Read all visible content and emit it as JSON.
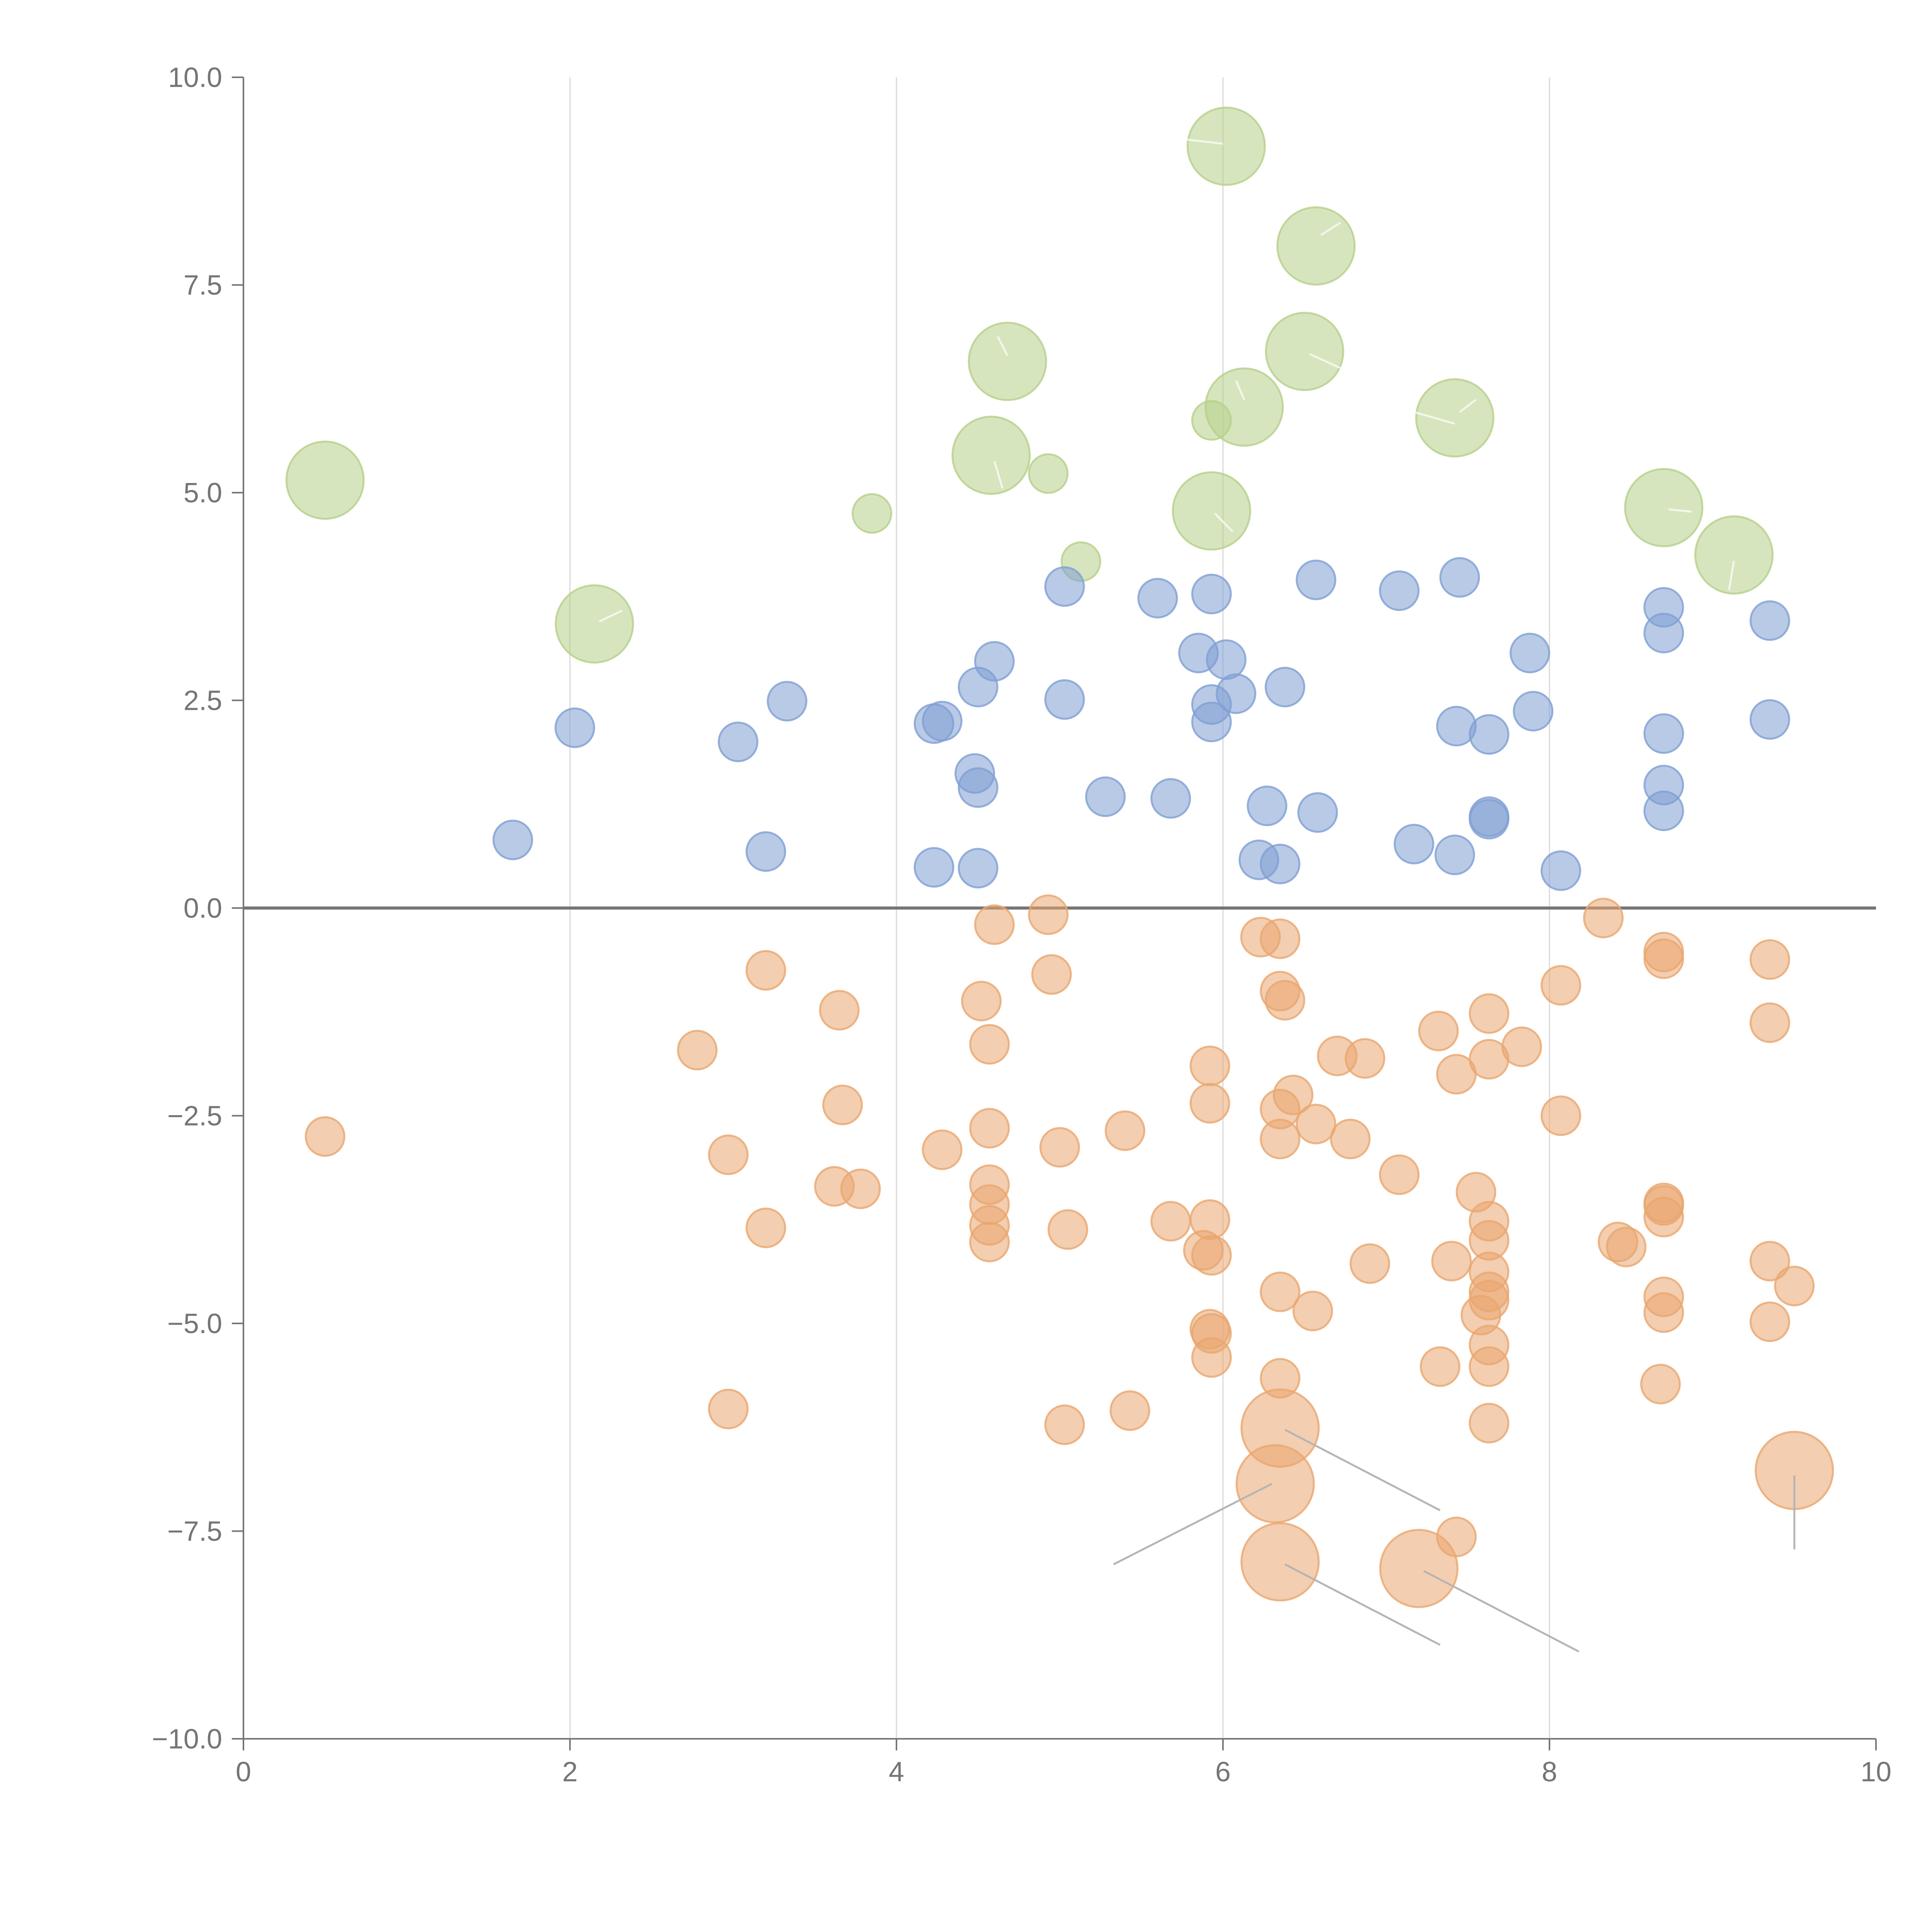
{
  "chart_data": {
    "type": "scatter",
    "title": "",
    "xlabel": "",
    "ylabel": "",
    "xlim": [
      0,
      10
    ],
    "ylim": [
      -10,
      10
    ],
    "x_ticks": [
      "0",
      "2",
      "4",
      "6",
      "8",
      "10"
    ],
    "y_ticks": [
      "−10.0",
      "−7.5",
      "−5.0",
      "−2.5",
      "0.0",
      "2.5",
      "5.0",
      "7.5",
      "10.0"
    ],
    "x_grid": [
      2,
      4,
      6,
      8
    ],
    "reference_line_y": 0,
    "colors": {
      "green": "#b6d08a",
      "blue": "#7f9fd3",
      "orange": "#e9a66f"
    },
    "series": [
      {
        "name": "green",
        "size_unit": "radius",
        "points": [
          [
            0.5,
            5.15,
            3
          ],
          [
            2.15,
            3.42,
            3
          ],
          [
            3.85,
            4.75,
            1
          ],
          [
            4.58,
            5.45,
            3
          ],
          [
            4.68,
            6.58,
            3
          ],
          [
            4.93,
            5.23,
            1
          ],
          [
            5.13,
            4.17,
            1
          ],
          [
            5.93,
            5.87,
            1
          ],
          [
            5.93,
            4.78,
            3
          ],
          [
            6.02,
            9.17,
            3
          ],
          [
            6.13,
            6.03,
            3
          ],
          [
            6.5,
            6.7,
            3
          ],
          [
            6.57,
            7.97,
            3
          ],
          [
            7.42,
            5.9,
            3
          ],
          [
            8.7,
            4.82,
            3
          ],
          [
            9.13,
            4.25,
            3
          ]
        ]
      },
      {
        "name": "blue",
        "size_unit": "radius",
        "points": [
          [
            1.65,
            0.82,
            1
          ],
          [
            2.03,
            2.17,
            1
          ],
          [
            3.03,
            2.0,
            1
          ],
          [
            3.2,
            0.68,
            1
          ],
          [
            3.33,
            2.49,
            1
          ],
          [
            4.23,
            0.49,
            1
          ],
          [
            4.23,
            2.22,
            1
          ],
          [
            4.28,
            2.25,
            1
          ],
          [
            4.48,
            1.62,
            1
          ],
          [
            4.5,
            1.45,
            1
          ],
          [
            4.5,
            0.48,
            1
          ],
          [
            4.5,
            2.66,
            1
          ],
          [
            4.6,
            2.97,
            1
          ],
          [
            5.03,
            3.87,
            1
          ],
          [
            5.03,
            2.51,
            1
          ],
          [
            5.28,
            1.34,
            1
          ],
          [
            5.6,
            3.73,
            1
          ],
          [
            5.68,
            1.32,
            1
          ],
          [
            5.85,
            3.07,
            1
          ],
          [
            5.93,
            3.78,
            1
          ],
          [
            5.93,
            2.45,
            1
          ],
          [
            5.93,
            2.24,
            1
          ],
          [
            6.02,
            2.99,
            1
          ],
          [
            6.08,
            2.58,
            1
          ],
          [
            6.22,
            0.58,
            1
          ],
          [
            6.27,
            1.23,
            1
          ],
          [
            6.35,
            0.53,
            1
          ],
          [
            6.38,
            2.66,
            1
          ],
          [
            6.57,
            3.95,
            1
          ],
          [
            6.58,
            1.15,
            1
          ],
          [
            7.08,
            3.82,
            1
          ],
          [
            7.17,
            0.77,
            1
          ],
          [
            7.42,
            0.64,
            1
          ],
          [
            7.43,
            2.19,
            1
          ],
          [
            7.45,
            3.98,
            1
          ],
          [
            7.63,
            2.09,
            1
          ],
          [
            7.63,
            1.1,
            1
          ],
          [
            7.63,
            1.07,
            1
          ],
          [
            7.88,
            3.07,
            1
          ],
          [
            7.9,
            2.37,
            1
          ],
          [
            8.07,
            0.45,
            1
          ],
          [
            8.7,
            3.62,
            1
          ],
          [
            8.7,
            3.31,
            1
          ],
          [
            8.7,
            2.1,
            1
          ],
          [
            8.7,
            1.48,
            1
          ],
          [
            8.7,
            1.17,
            1
          ],
          [
            9.35,
            3.46,
            1
          ],
          [
            9.35,
            2.27,
            1
          ]
        ]
      },
      {
        "name": "orange",
        "size_unit": "radius",
        "points": [
          [
            0.5,
            -2.75,
            1
          ],
          [
            2.78,
            -1.71,
            1
          ],
          [
            2.97,
            -2.97,
            1
          ],
          [
            2.97,
            -6.03,
            1
          ],
          [
            3.2,
            -0.75,
            1
          ],
          [
            3.2,
            -3.85,
            1
          ],
          [
            3.62,
            -3.35,
            1
          ],
          [
            3.65,
            -1.23,
            1
          ],
          [
            3.67,
            -2.37,
            1
          ],
          [
            3.78,
            -3.38,
            1
          ],
          [
            4.28,
            -2.91,
            1
          ],
          [
            4.52,
            -1.12,
            1
          ],
          [
            4.57,
            -1.64,
            1
          ],
          [
            4.57,
            -2.65,
            1
          ],
          [
            4.57,
            -3.33,
            1
          ],
          [
            4.57,
            -3.57,
            1
          ],
          [
            4.57,
            -3.82,
            1
          ],
          [
            4.57,
            -4.02,
            1
          ],
          [
            4.6,
            -0.2,
            1
          ],
          [
            4.93,
            -0.08,
            1
          ],
          [
            4.95,
            -0.8,
            1
          ],
          [
            5.0,
            -2.88,
            1
          ],
          [
            5.03,
            -6.22,
            1
          ],
          [
            5.05,
            -3.87,
            1
          ],
          [
            5.4,
            -2.68,
            1
          ],
          [
            5.43,
            -6.05,
            1
          ],
          [
            5.68,
            -3.77,
            1
          ],
          [
            5.88,
            -4.12,
            1
          ],
          [
            5.92,
            -1.9,
            1
          ],
          [
            5.92,
            -2.35,
            1
          ],
          [
            5.92,
            -3.75,
            1
          ],
          [
            5.93,
            -4.18,
            1
          ],
          [
            5.92,
            -5.07,
            1
          ],
          [
            5.93,
            -5.12,
            1
          ],
          [
            5.93,
            -5.41,
            1
          ],
          [
            6.23,
            -0.35,
            1
          ],
          [
            6.35,
            -0.37,
            1
          ],
          [
            6.35,
            -1.0,
            1
          ],
          [
            6.38,
            -1.11,
            1
          ],
          [
            6.43,
            -2.25,
            1
          ],
          [
            6.35,
            -2.42,
            1
          ],
          [
            6.35,
            -2.78,
            1
          ],
          [
            6.35,
            -4.62,
            1
          ],
          [
            6.35,
            -5.66,
            1
          ],
          [
            6.35,
            -6.26,
            3
          ],
          [
            6.32,
            -6.93,
            3
          ],
          [
            6.35,
            -7.87,
            3
          ],
          [
            6.55,
            -4.85,
            1
          ],
          [
            6.57,
            -2.6,
            1
          ],
          [
            6.7,
            -1.78,
            1
          ],
          [
            6.78,
            -2.78,
            1
          ],
          [
            6.87,
            -1.81,
            1
          ],
          [
            6.9,
            -4.28,
            1
          ],
          [
            7.08,
            -3.21,
            1
          ],
          [
            7.2,
            -7.95,
            3
          ],
          [
            7.32,
            -1.48,
            1
          ],
          [
            7.33,
            -5.52,
            1
          ],
          [
            7.4,
            -4.25,
            1
          ],
          [
            7.43,
            -7.57,
            1
          ],
          [
            7.43,
            -2.0,
            1
          ],
          [
            7.55,
            -3.42,
            1
          ],
          [
            7.58,
            -4.9,
            1
          ],
          [
            7.63,
            -1.27,
            1
          ],
          [
            7.63,
            -1.82,
            1
          ],
          [
            7.63,
            -3.77,
            1
          ],
          [
            7.63,
            -4.0,
            1
          ],
          [
            7.63,
            -4.38,
            1
          ],
          [
            7.63,
            -4.62,
            1
          ],
          [
            7.63,
            -4.72,
            1
          ],
          [
            7.63,
            -5.26,
            1
          ],
          [
            7.63,
            -5.52,
            1
          ],
          [
            7.63,
            -6.2,
            1
          ],
          [
            7.83,
            -1.67,
            1
          ],
          [
            8.07,
            -0.93,
            1
          ],
          [
            8.07,
            -2.5,
            1
          ],
          [
            8.33,
            -0.12,
            1
          ],
          [
            8.42,
            -4.02,
            1
          ],
          [
            8.47,
            -4.08,
            1
          ],
          [
            8.68,
            -5.73,
            1
          ],
          [
            8.7,
            -0.53,
            1
          ],
          [
            8.7,
            -0.61,
            1
          ],
          [
            8.7,
            -3.55,
            1
          ],
          [
            8.7,
            -3.58,
            1
          ],
          [
            8.7,
            -3.72,
            1
          ],
          [
            8.7,
            -4.68,
            1
          ],
          [
            8.7,
            -4.87,
            1
          ],
          [
            9.35,
            -0.62,
            1
          ],
          [
            9.35,
            -1.38,
            1
          ],
          [
            9.35,
            -4.25,
            1
          ],
          [
            9.35,
            -4.98,
            1
          ],
          [
            9.5,
            -4.55,
            1
          ],
          [
            9.5,
            -6.77,
            3
          ]
        ]
      }
    ],
    "leader_lines": [
      {
        "series": "orange",
        "from": [
          6.38,
          -6.28
        ],
        "to": [
          7.33,
          -7.25
        ],
        "style": "gray"
      },
      {
        "series": "orange",
        "from": [
          6.3,
          -6.93
        ],
        "to": [
          5.33,
          -7.9
        ],
        "style": "gray"
      },
      {
        "series": "orange",
        "from": [
          6.38,
          -7.9
        ],
        "to": [
          7.33,
          -8.87
        ],
        "style": "gray"
      },
      {
        "series": "orange",
        "from": [
          7.23,
          -7.98
        ],
        "to": [
          8.18,
          -8.95
        ],
        "style": "gray"
      },
      {
        "series": "orange",
        "from": [
          9.5,
          -6.83
        ],
        "to": [
          9.5,
          -7.72
        ],
        "style": "gray"
      },
      {
        "series": "green",
        "from": [
          6.0,
          9.2
        ],
        "to": [
          5.78,
          9.25
        ],
        "style": "light"
      },
      {
        "series": "green",
        "from": [
          6.6,
          8.1
        ],
        "to": [
          6.72,
          8.25
        ],
        "style": "light"
      },
      {
        "series": "green",
        "from": [
          4.68,
          6.65
        ],
        "to": [
          4.62,
          6.88
        ],
        "style": "light"
      },
      {
        "series": "green",
        "from": [
          6.53,
          6.67
        ],
        "to": [
          6.72,
          6.5
        ],
        "style": "light"
      },
      {
        "series": "green",
        "from": [
          6.13,
          6.12
        ],
        "to": [
          6.08,
          6.35
        ],
        "style": "light"
      },
      {
        "series": "green",
        "from": [
          7.45,
          5.97
        ],
        "to": [
          7.55,
          6.12
        ],
        "style": "light"
      },
      {
        "series": "green",
        "from": [
          7.42,
          5.83
        ],
        "to": [
          7.03,
          6.05
        ],
        "style": "light"
      },
      {
        "series": "green",
        "from": [
          4.6,
          5.38
        ],
        "to": [
          4.65,
          5.05
        ],
        "style": "light"
      },
      {
        "series": "green",
        "from": [
          5.95,
          4.75
        ],
        "to": [
          6.06,
          4.53
        ],
        "style": "light"
      },
      {
        "series": "green",
        "from": [
          8.73,
          4.8
        ],
        "to": [
          8.87,
          4.77
        ],
        "style": "light"
      },
      {
        "series": "green",
        "from": [
          9.13,
          4.18
        ],
        "to": [
          9.1,
          3.83
        ],
        "style": "light"
      },
      {
        "series": "green",
        "from": [
          2.18,
          3.45
        ],
        "to": [
          2.32,
          3.58
        ],
        "style": "light"
      }
    ]
  }
}
